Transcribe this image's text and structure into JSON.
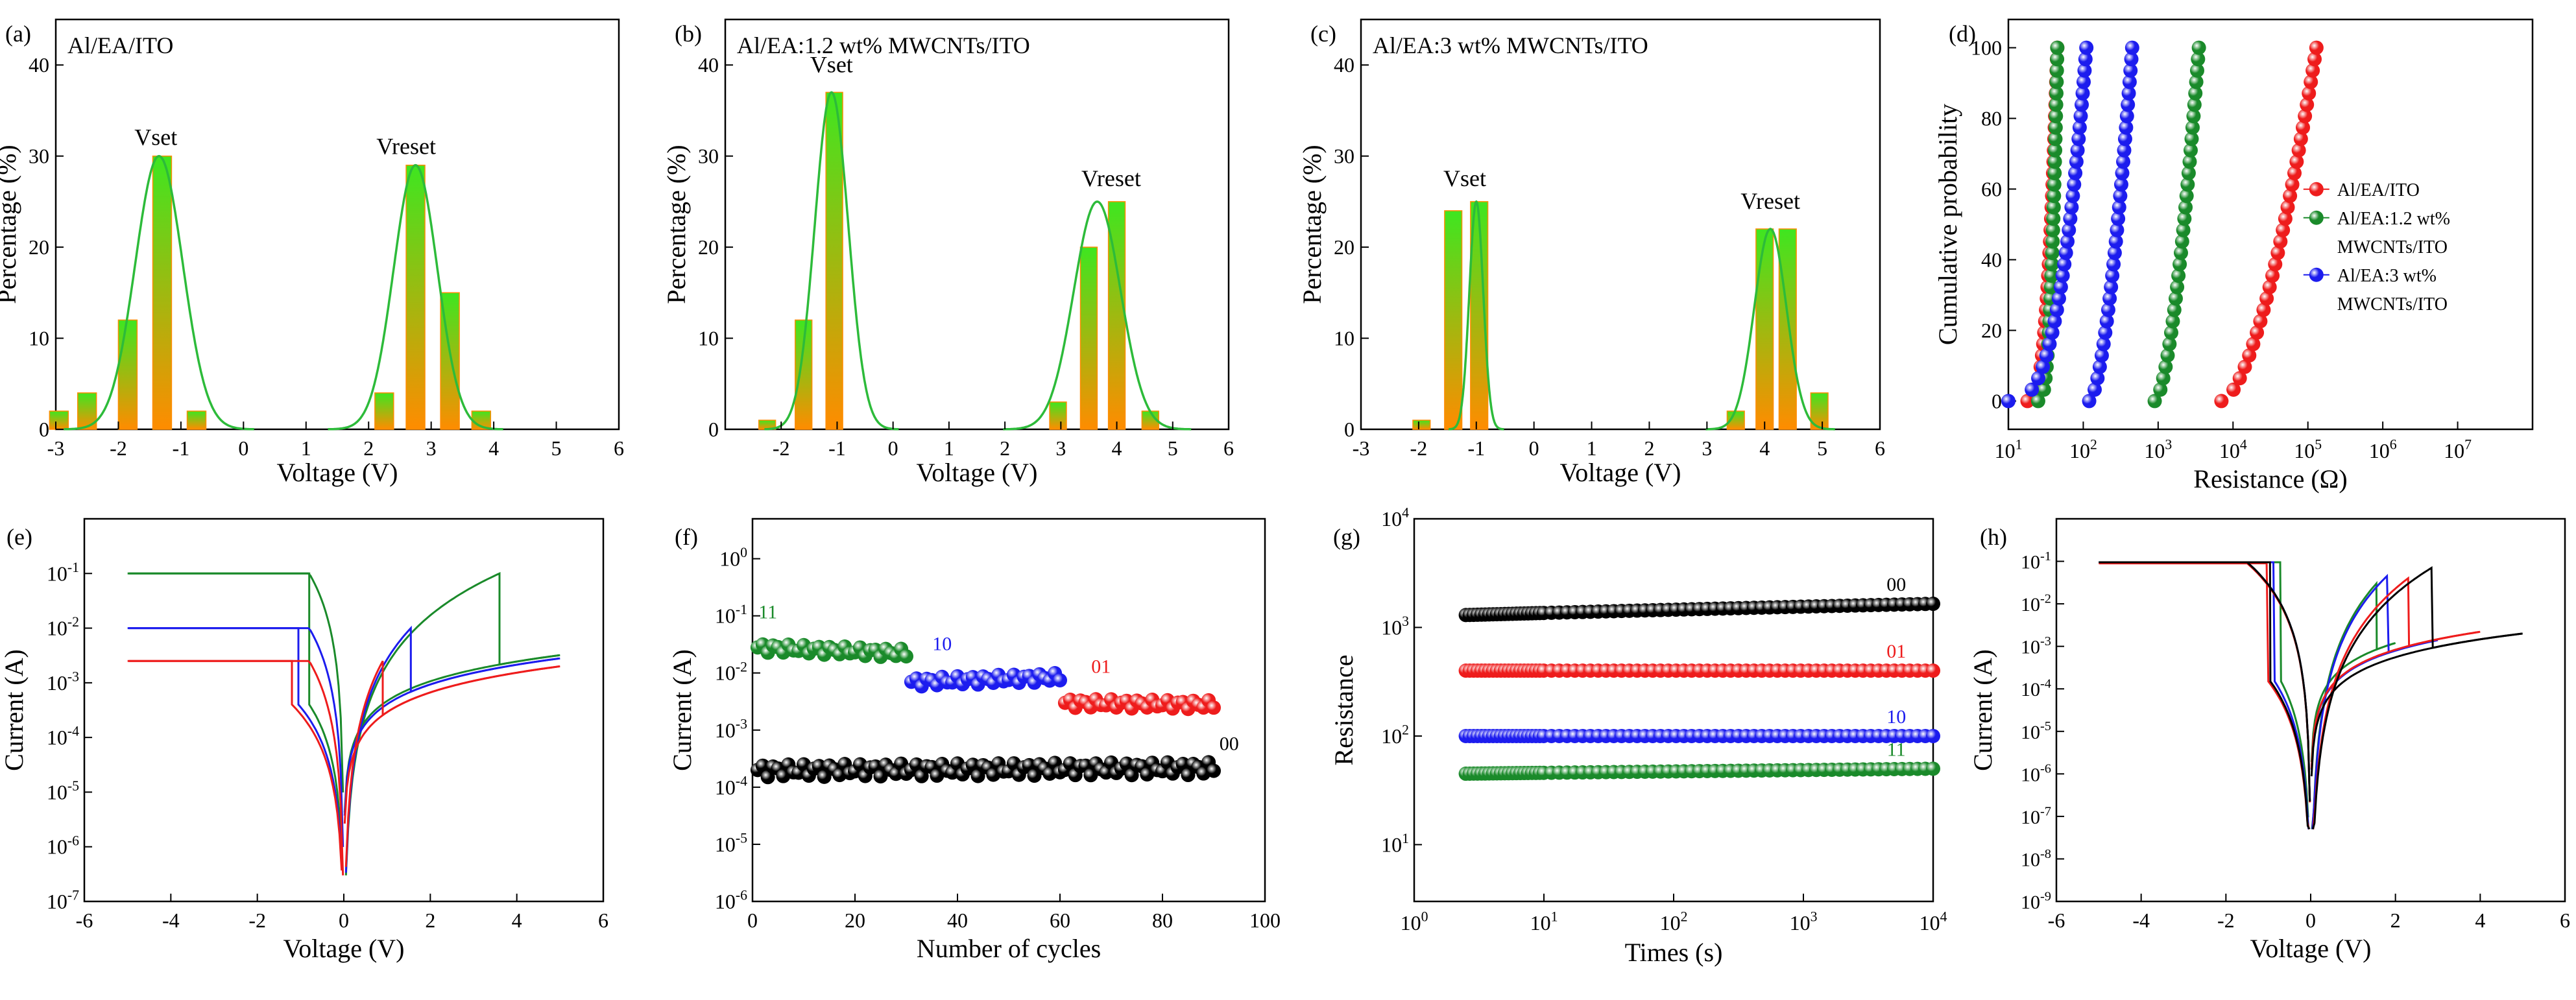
{
  "figure": {
    "colors": {
      "red": "#ee1c1c",
      "green": "#1a8a2a",
      "blue": "#1c1cee",
      "black": "#000000",
      "curve": "#2dbb3a",
      "bar_top": "#3ee620",
      "bar_bottom": "#ff8c00"
    }
  },
  "chart_data": [
    {
      "id": "a",
      "type": "bar",
      "panel_label": "(a)",
      "inset_title": "Al/EA/ITO",
      "xlabel": "Voltage (V)",
      "ylabel": "Percentage (%)",
      "xlim": [
        -3,
        6
      ],
      "ylim": [
        0,
        45
      ],
      "xticks": [
        -3,
        -2,
        -1,
        0,
        1,
        2,
        3,
        4,
        5,
        6
      ],
      "yticks": [
        0,
        10,
        20,
        30,
        40
      ],
      "bars": [
        [
          -2.95,
          2
        ],
        [
          -2.5,
          4
        ],
        [
          -1.85,
          12
        ],
        [
          -1.3,
          30
        ],
        [
          -0.75,
          2
        ],
        [
          2.25,
          4
        ],
        [
          2.75,
          29
        ],
        [
          3.3,
          15
        ],
        [
          3.8,
          2
        ]
      ],
      "fits": [
        {
          "mu": -1.35,
          "sigma": 0.38,
          "amp": 30
        },
        {
          "mu": 2.75,
          "sigma": 0.35,
          "amp": 29
        }
      ],
      "peak_labels": [
        {
          "text": "Vset",
          "x": -1.4,
          "y": 30.5
        },
        {
          "text": "Vreset",
          "x": 2.6,
          "y": 29.5
        }
      ]
    },
    {
      "id": "b",
      "type": "bar",
      "panel_label": "(b)",
      "inset_title": "Al/EA:1.2 wt% MWCNTs/ITO",
      "xlabel": "Voltage (V)",
      "ylabel": "Percentage (%)",
      "xlim": [
        -3,
        6
      ],
      "ylim": [
        0,
        45
      ],
      "xticks": [
        -2,
        -1,
        0,
        1,
        2,
        3,
        4,
        5,
        6
      ],
      "yticks": [
        0,
        10,
        20,
        30,
        40
      ],
      "bars": [
        [
          -2.25,
          1
        ],
        [
          -1.6,
          12
        ],
        [
          -1.05,
          37
        ],
        [
          2.95,
          3
        ],
        [
          3.5,
          20
        ],
        [
          4.0,
          25
        ],
        [
          4.6,
          2
        ]
      ],
      "fits": [
        {
          "mu": -1.1,
          "sigma": 0.3,
          "amp": 37
        },
        {
          "mu": 3.65,
          "sigma": 0.42,
          "amp": 25
        }
      ],
      "peak_labels": [
        {
          "text": "Vset",
          "x": -1.1,
          "y": 38.5
        },
        {
          "text": "Vreset",
          "x": 3.9,
          "y": 26
        }
      ]
    },
    {
      "id": "c",
      "type": "bar",
      "panel_label": "(c)",
      "inset_title": "Al/EA:3 wt% MWCNTs/ITO",
      "xlabel": "Voltage (V)",
      "ylabel": "Percentage (%)",
      "xlim": [
        -3,
        6
      ],
      "ylim": [
        0,
        45
      ],
      "xticks": [
        -3,
        -2,
        -1,
        0,
        1,
        2,
        3,
        4,
        5,
        6
      ],
      "yticks": [
        0,
        10,
        20,
        30,
        40
      ],
      "bars": [
        [
          -1.95,
          1
        ],
        [
          -1.4,
          24
        ],
        [
          -0.95,
          25
        ],
        [
          3.5,
          2
        ],
        [
          4.0,
          22
        ],
        [
          4.4,
          22
        ],
        [
          4.95,
          4
        ]
      ],
      "fits": [
        {
          "mu": -1.0,
          "sigma": 0.12,
          "amp": 25
        },
        {
          "mu": 4.1,
          "sigma": 0.28,
          "amp": 22
        }
      ],
      "peak_labels": [
        {
          "text": "Vset",
          "x": -1.2,
          "y": 26
        },
        {
          "text": "Vreset",
          "x": 4.1,
          "y": 23.5
        }
      ]
    },
    {
      "id": "d",
      "type": "scatter",
      "panel_label": "(d)",
      "xlabel": "Resistance (Ω)",
      "ylabel": "Cumulative probability",
      "xscale": "log",
      "xlim": [
        10,
        100000000
      ],
      "ylim": [
        -8,
        108
      ],
      "xtick_exps": [
        "1",
        "2",
        "3",
        "4",
        "5",
        "6",
        "7"
      ],
      "xtick_base": "10",
      "yticks": [
        0,
        20,
        40,
        60,
        80,
        100
      ],
      "legend": [
        "Al/EA/ITO",
        "Al/EA:1.2 wt%",
        "MWCNTs/ITO",
        "Al/EA:3 wt%",
        "MWCNTs/ITO"
      ],
      "series": [
        {
          "name": "Al/EA/ITO",
          "color": "red",
          "high": [
            7000,
            50000,
            130000
          ],
          "low": [
            18,
            24,
            45
          ]
        },
        {
          "name": "Al/EA:1.2 wt% MWCNTs/ITO",
          "color": "green",
          "high": [
            900,
            1500,
            3500
          ],
          "low": [
            25,
            30,
            45
          ]
        },
        {
          "name": "Al/EA:3 wt% MWCNTs/ITO",
          "color": "blue",
          "high": [
            120,
            300,
            450
          ],
          "low": [
            10,
            45,
            110
          ]
        }
      ]
    },
    {
      "id": "e",
      "type": "line",
      "panel_label": "(e)",
      "xlabel": "Voltage (V)",
      "ylabel": "Current (A)",
      "yscale": "log",
      "xlim": [
        -6,
        6
      ],
      "ylim": [
        1e-07,
        1
      ],
      "xticks": [
        -6,
        -4,
        -2,
        0,
        2,
        4,
        6
      ],
      "ytick_exps": [
        "-7",
        "-6",
        "-5",
        "-4",
        "-3",
        "-2",
        "-1"
      ],
      "ytick_base": "10",
      "series": [
        {
          "name": "green",
          "color": "green",
          "comp": 0.1,
          "setV": 3.6,
          "resetV": -0.8,
          "Imax": 0.0032
        },
        {
          "name": "blue",
          "color": "blue",
          "comp": 0.01,
          "setV": 1.55,
          "resetV": -1.05,
          "Imax": 0.0028
        },
        {
          "name": "red",
          "color": "red",
          "comp": 0.0025,
          "setV": 0.9,
          "resetV": -1.2,
          "Imax": 0.002
        }
      ]
    },
    {
      "id": "f",
      "type": "scatter",
      "panel_label": "(f)",
      "xlabel": "Number of cycles",
      "ylabel": "Current (A)",
      "yscale": "log",
      "xlim": [
        0,
        100
      ],
      "ylim": [
        1e-06,
        5
      ],
      "xticks": [
        0,
        20,
        40,
        60,
        80,
        100
      ],
      "ytick_exps": [
        "-6",
        "-5",
        "-4",
        "-3",
        "-2",
        "-1",
        "0"
      ],
      "ytick_base": "10",
      "series": [
        {
          "label": "11",
          "color": "green",
          "x": [
            1,
            30
          ],
          "y": [
            0.028,
            0.022
          ]
        },
        {
          "label": "10",
          "color": "blue",
          "x": [
            31,
            60
          ],
          "y": [
            0.007,
            0.0085
          ]
        },
        {
          "label": "01",
          "color": "red",
          "x": [
            61,
            90
          ],
          "y": [
            0.003,
            0.0028
          ]
        },
        {
          "label": "00",
          "color": "black",
          "x": [
            1,
            90
          ],
          "y": [
            0.0002,
            0.00022
          ]
        }
      ]
    },
    {
      "id": "g",
      "type": "scatter",
      "panel_label": "(g)",
      "xlabel": "Times (s)",
      "ylabel": "Resistance",
      "xscale": "log",
      "yscale": "log",
      "xlim": [
        1,
        10000
      ],
      "ylim": [
        3,
        10000
      ],
      "xtick_exps": [
        "0",
        "1",
        "2",
        "3",
        "4"
      ],
      "ytick_exps": [
        "1",
        "2",
        "3",
        "4"
      ],
      "tick_base": "10",
      "series": [
        {
          "label": "00",
          "color": "black",
          "y0": 1300,
          "y1": 1650
        },
        {
          "label": "01",
          "color": "red",
          "y0": 400,
          "y1": 400
        },
        {
          "label": "10",
          "color": "blue",
          "y0": 100,
          "y1": 100
        },
        {
          "label": "11",
          "color": "green",
          "y0": 45,
          "y1": 50
        }
      ]
    },
    {
      "id": "h",
      "type": "line",
      "panel_label": "(h)",
      "xlabel": "Voltage (V)",
      "ylabel": "Current (A)",
      "yscale": "log",
      "xlim": [
        -6,
        6
      ],
      "ylim": [
        1e-09,
        1
      ],
      "xticks": [
        -6,
        -4,
        -2,
        0,
        2,
        4,
        6
      ],
      "ytick_exps": [
        "-9",
        "-8",
        "-7",
        "-6",
        "-5",
        "-4",
        "-3",
        "-2",
        "-1"
      ],
      "ytick_base": "10",
      "series": [
        {
          "name": "green",
          "color": "green",
          "vmax": 2.0,
          "setV": 1.55,
          "resetV": -0.7,
          "comp": 0.095,
          "Imax": 0.0012,
          "peak": 0.03
        },
        {
          "name": "blue",
          "color": "blue",
          "vmax": 3.0,
          "setV": 1.8,
          "resetV": -0.85,
          "comp": 0.095,
          "Imax": 0.0014,
          "peak": 0.045
        },
        {
          "name": "red",
          "color": "red",
          "vmax": 4.0,
          "setV": 2.3,
          "resetV": -1.0,
          "comp": 0.09,
          "Imax": 0.0022,
          "peak": 0.04
        },
        {
          "name": "black",
          "color": "black",
          "vmax": 5.0,
          "setV": 2.85,
          "resetV": -0.95,
          "comp": 0.095,
          "Imax": 0.002,
          "peak": 0.07
        }
      ]
    }
  ]
}
